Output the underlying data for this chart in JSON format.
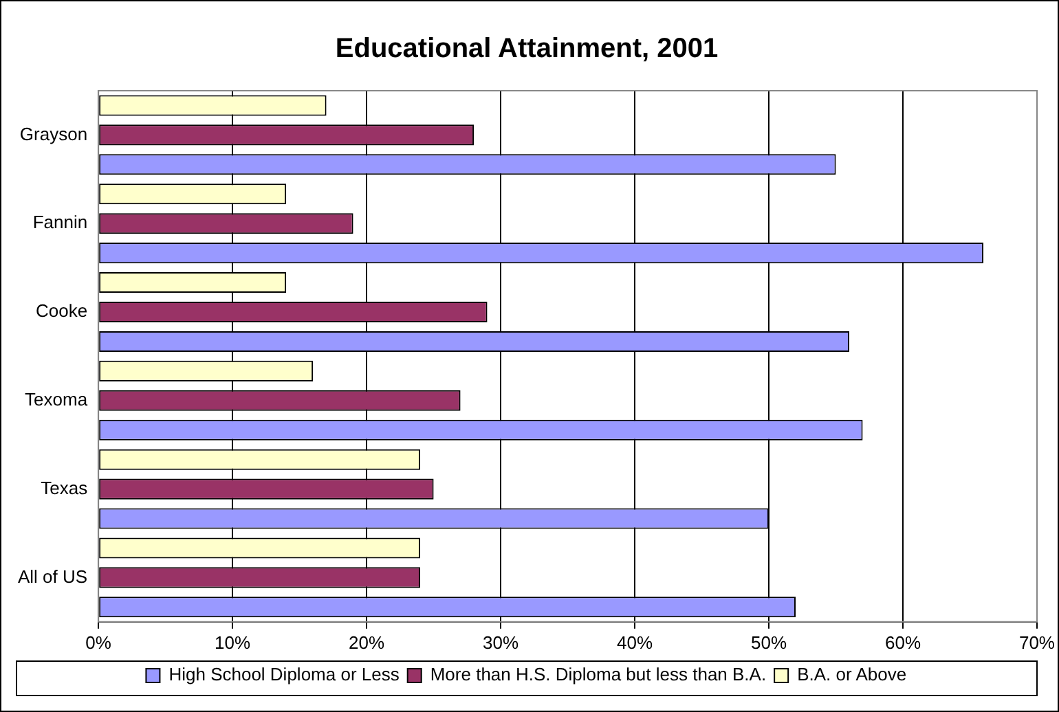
{
  "chart_data": {
    "type": "bar",
    "orientation": "horizontal",
    "title": "Educational Attainment, 2001",
    "categories": [
      "Grayson",
      "Fannin",
      "Cooke",
      "Texoma",
      "Texas",
      "All of US"
    ],
    "series": [
      {
        "name": "High School Diploma or Less",
        "color": "#9999ff",
        "values": [
          55,
          66,
          56,
          57,
          50,
          52
        ]
      },
      {
        "name": "More than H.S. Diploma but less than B.A.",
        "color": "#993366",
        "values": [
          28,
          19,
          29,
          27,
          25,
          24
        ]
      },
      {
        "name": "B.A. or Above",
        "color": "#ffffcc",
        "values": [
          17,
          14,
          14,
          16,
          24,
          24
        ]
      }
    ],
    "xlim": [
      0,
      70
    ],
    "xticks": [
      {
        "value": 0,
        "label": "0%"
      },
      {
        "value": 10,
        "label": "10%"
      },
      {
        "value": 20,
        "label": "20%"
      },
      {
        "value": 30,
        "label": "30%"
      },
      {
        "value": 40,
        "label": "40%"
      },
      {
        "value": 50,
        "label": "50%"
      },
      {
        "value": 60,
        "label": "60%"
      },
      {
        "value": 70,
        "label": "70%"
      }
    ],
    "grid": "x",
    "legend": "bottom"
  }
}
